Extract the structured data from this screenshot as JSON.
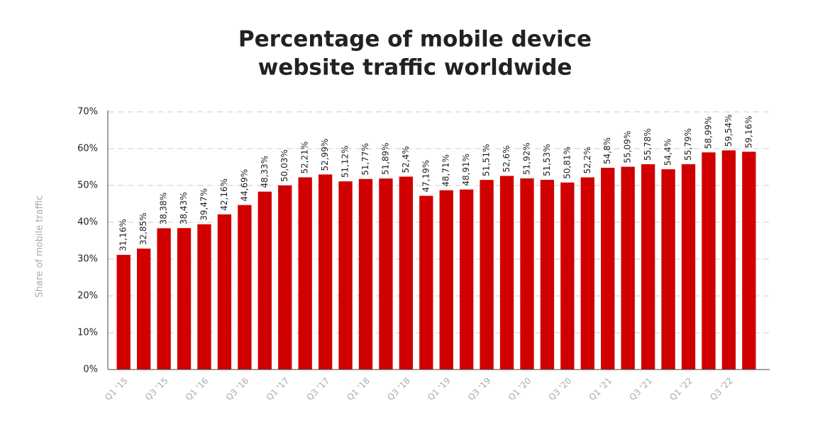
{
  "chart_data": {
    "type": "bar",
    "title": [
      "Percentage of mobile device",
      "website traffic worldwide"
    ],
    "y_label": "Share of mobile traffic",
    "categories": [
      "Q1 '15",
      null,
      "Q3 '15",
      null,
      "Q1 '16",
      null,
      "Q3 '16",
      null,
      "Q1 '17",
      null,
      "Q3 '17",
      null,
      "Q1 '18",
      null,
      "Q3 '18",
      null,
      "Q1 '19",
      null,
      "Q3 '19",
      null,
      "Q1 '20",
      null,
      "Q3 '20",
      null,
      "Q1 '21",
      null,
      "Q3 '21",
      null,
      "Q1 '22",
      null,
      "Q3 '22",
      null
    ],
    "values": [
      31.16,
      32.85,
      38.38,
      38.43,
      39.47,
      42.16,
      44.69,
      48.33,
      50.03,
      52.21,
      52.99,
      51.12,
      51.77,
      51.89,
      52.4,
      47.19,
      48.71,
      48.91,
      51.51,
      52.6,
      51.92,
      51.53,
      50.81,
      52.2,
      54.8,
      55.09,
      55.78,
      54.4,
      55.79,
      58.99,
      59.54,
      59.16
    ],
    "value_labels": [
      "31,16%",
      "32,85%",
      "38,38%",
      "38,43%",
      "39,47%",
      "42,16%",
      "44,69%",
      "48,33%",
      "50,03%",
      "52,21%",
      "52,99%",
      "51,12%",
      "51,77%",
      "51,89%",
      "52,4%",
      "47,19%",
      "48,71%",
      "48,91%",
      "51,51%",
      "52,6%",
      "51,92%",
      "51,53%",
      "50,81%",
      "52,2%",
      "54,8%",
      "55,09%",
      "55,78%",
      "54,4%",
      "55,79%",
      "58,99%",
      "59,54%",
      "59,16%"
    ],
    "color": "#d10000",
    "ylim": [
      0,
      70
    ],
    "yticks": [
      {
        "value": 0,
        "label": "0%"
      },
      {
        "value": 10,
        "label": "10%"
      },
      {
        "value": 20,
        "label": "20%"
      },
      {
        "value": 30,
        "label": "30%"
      },
      {
        "value": 40,
        "label": "40%"
      },
      {
        "value": 50,
        "label": "50%"
      },
      {
        "value": 60,
        "label": "60%"
      },
      {
        "value": 70,
        "label": "70%"
      }
    ],
    "grid": true
  }
}
